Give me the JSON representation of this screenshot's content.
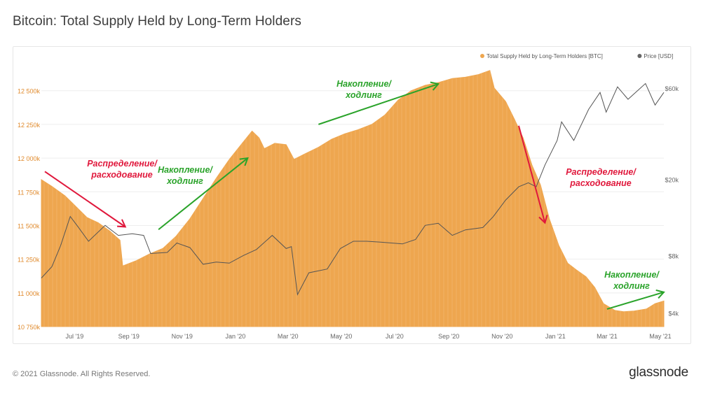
{
  "title": "Bitcoin: Total Supply Held by Long-Term Holders",
  "footer": "© 2021 Glassnode. All Rights Reserved.",
  "brand": "glassnode",
  "watermark": "glassnode",
  "colors": {
    "supply": "#eea64f",
    "supply_text": "#e08a2c",
    "price": "#555555",
    "green": "#2aa32a",
    "red": "#e0183c",
    "grid": "#eeeeee",
    "axis_text": "#666666"
  },
  "chart_data": {
    "type": "area",
    "legend": {
      "position": "top-right",
      "items": [
        {
          "label": "Total Supply Held by Long-Term Holders [BTC]",
          "color": "#eea64f"
        },
        {
          "label": "Price [USD]",
          "color": "#666666"
        }
      ]
    },
    "x_range": [
      "2019-05-24",
      "2021-05-05"
    ],
    "x_ticks": [
      {
        "date": "2019-07-01",
        "label": "Jul '19"
      },
      {
        "date": "2019-09-01",
        "label": "Sep '19"
      },
      {
        "date": "2019-11-01",
        "label": "Nov '19"
      },
      {
        "date": "2020-01-01",
        "label": "Jan '20"
      },
      {
        "date": "2020-03-01",
        "label": "Mar '20"
      },
      {
        "date": "2020-05-01",
        "label": "May '20"
      },
      {
        "date": "2020-07-01",
        "label": "Jul '20"
      },
      {
        "date": "2020-09-01",
        "label": "Sep '20"
      },
      {
        "date": "2020-11-01",
        "label": "Nov '20"
      },
      {
        "date": "2021-01-01",
        "label": "Jan '21"
      },
      {
        "date": "2021-03-01",
        "label": "Mar '21"
      },
      {
        "date": "2021-05-01",
        "label": "May '21"
      }
    ],
    "y_left": {
      "min": 10750,
      "max": 12680,
      "ticks": [
        10750,
        11000,
        11250,
        11500,
        11750,
        12000,
        12250,
        12500
      ],
      "tick_labels": [
        "10 750k",
        "11 000k",
        "11 250k",
        "11 500k",
        "11 750k",
        "12 000k",
        "12 250k",
        "12 500k"
      ]
    },
    "y_right": {
      "scale": "log",
      "min": 3400,
      "max": 78000,
      "ticks": [
        4000,
        8000,
        20000,
        60000
      ],
      "tick_labels": [
        "$4k",
        "$8k",
        "$20k",
        "$60k"
      ]
    },
    "grid": "horizontal",
    "series": [
      {
        "name": "Total Supply Held by Long-Term Holders [BTC]",
        "type": "area",
        "points": [
          [
            "2019-05-24",
            11840
          ],
          [
            "2019-06-05",
            11790
          ],
          [
            "2019-06-20",
            11720
          ],
          [
            "2019-07-01",
            11650
          ],
          [
            "2019-07-15",
            11560
          ],
          [
            "2019-07-28",
            11520
          ],
          [
            "2019-08-10",
            11460
          ],
          [
            "2019-08-22",
            11390
          ],
          [
            "2019-08-25",
            11200
          ],
          [
            "2019-09-10",
            11240
          ],
          [
            "2019-09-25",
            11290
          ],
          [
            "2019-10-10",
            11330
          ],
          [
            "2019-10-25",
            11420
          ],
          [
            "2019-11-10",
            11550
          ],
          [
            "2019-11-25",
            11700
          ],
          [
            "2019-12-10",
            11850
          ],
          [
            "2019-12-25",
            11990
          ],
          [
            "2020-01-10",
            12120
          ],
          [
            "2020-01-20",
            12200
          ],
          [
            "2020-01-28",
            12150
          ],
          [
            "2020-02-03",
            12070
          ],
          [
            "2020-02-15",
            12110
          ],
          [
            "2020-02-28",
            12100
          ],
          [
            "2020-03-08",
            11990
          ],
          [
            "2020-03-20",
            12030
          ],
          [
            "2020-04-05",
            12080
          ],
          [
            "2020-04-20",
            12140
          ],
          [
            "2020-05-05",
            12180
          ],
          [
            "2020-05-20",
            12210
          ],
          [
            "2020-06-05",
            12250
          ],
          [
            "2020-06-20",
            12320
          ],
          [
            "2020-07-05",
            12430
          ],
          [
            "2020-07-20",
            12500
          ],
          [
            "2020-08-05",
            12540
          ],
          [
            "2020-08-20",
            12560
          ],
          [
            "2020-09-05",
            12590
          ],
          [
            "2020-09-20",
            12600
          ],
          [
            "2020-10-05",
            12620
          ],
          [
            "2020-10-18",
            12650
          ],
          [
            "2020-10-23",
            12520
          ],
          [
            "2020-11-05",
            12420
          ],
          [
            "2020-11-15",
            12290
          ],
          [
            "2020-11-25",
            12150
          ],
          [
            "2020-12-05",
            11950
          ],
          [
            "2020-12-15",
            11800
          ],
          [
            "2020-12-25",
            11550
          ],
          [
            "2021-01-05",
            11350
          ],
          [
            "2021-01-15",
            11220
          ],
          [
            "2021-01-25",
            11170
          ],
          [
            "2021-02-05",
            11120
          ],
          [
            "2021-02-15",
            11040
          ],
          [
            "2021-02-25",
            10920
          ],
          [
            "2021-03-10",
            10870
          ],
          [
            "2021-03-20",
            10860
          ],
          [
            "2021-04-01",
            10865
          ],
          [
            "2021-04-15",
            10880
          ],
          [
            "2021-04-25",
            10920
          ],
          [
            "2021-05-05",
            10940
          ]
        ]
      },
      {
        "name": "Price [USD]",
        "type": "line",
        "points": [
          [
            "2019-05-24",
            6100
          ],
          [
            "2019-06-05",
            7000
          ],
          [
            "2019-06-15",
            9000
          ],
          [
            "2019-06-26",
            12800
          ],
          [
            "2019-07-05",
            11300
          ],
          [
            "2019-07-17",
            9500
          ],
          [
            "2019-08-05",
            11500
          ],
          [
            "2019-08-20",
            10200
          ],
          [
            "2019-09-05",
            10400
          ],
          [
            "2019-09-18",
            10200
          ],
          [
            "2019-09-26",
            8200
          ],
          [
            "2019-10-15",
            8300
          ],
          [
            "2019-10-26",
            9300
          ],
          [
            "2019-11-10",
            8800
          ],
          [
            "2019-11-25",
            7200
          ],
          [
            "2019-12-10",
            7400
          ],
          [
            "2019-12-25",
            7300
          ],
          [
            "2020-01-10",
            8000
          ],
          [
            "2020-01-25",
            8600
          ],
          [
            "2020-02-12",
            10200
          ],
          [
            "2020-02-28",
            8700
          ],
          [
            "2020-03-05",
            8900
          ],
          [
            "2020-03-12",
            5000
          ],
          [
            "2020-03-25",
            6500
          ],
          [
            "2020-04-15",
            6800
          ],
          [
            "2020-04-30",
            8700
          ],
          [
            "2020-05-15",
            9500
          ],
          [
            "2020-05-30",
            9500
          ],
          [
            "2020-06-15",
            9400
          ],
          [
            "2020-07-10",
            9200
          ],
          [
            "2020-07-25",
            9700
          ],
          [
            "2020-08-05",
            11500
          ],
          [
            "2020-08-20",
            11800
          ],
          [
            "2020-09-05",
            10200
          ],
          [
            "2020-09-20",
            10900
          ],
          [
            "2020-10-10",
            11200
          ],
          [
            "2020-10-22",
            12800
          ],
          [
            "2020-11-05",
            15600
          ],
          [
            "2020-11-20",
            18300
          ],
          [
            "2020-12-01",
            19200
          ],
          [
            "2020-12-10",
            18300
          ],
          [
            "2020-12-20",
            23800
          ],
          [
            "2021-01-03",
            32000
          ],
          [
            "2021-01-08",
            40000
          ],
          [
            "2021-01-22",
            32000
          ],
          [
            "2021-02-08",
            46500
          ],
          [
            "2021-02-21",
            57000
          ],
          [
            "2021-02-28",
            45000
          ],
          [
            "2021-03-13",
            61000
          ],
          [
            "2021-03-25",
            52500
          ],
          [
            "2021-04-14",
            63500
          ],
          [
            "2021-04-25",
            49000
          ],
          [
            "2021-05-05",
            57000
          ]
        ]
      }
    ],
    "annotations": [
      {
        "lines": [
          "Распределение/",
          "расходование"
        ],
        "color": "red",
        "arrow_from": [
          "2019-05-28",
          11900
        ],
        "arrow_to": [
          "2019-08-28",
          11490
        ]
      },
      {
        "lines": [
          "Накопление/",
          "ходлинг"
        ],
        "color": "green",
        "arrow_from": [
          "2019-10-05",
          11470
        ],
        "arrow_to": [
          "2020-01-15",
          12000
        ]
      },
      {
        "lines": [
          "Накопление/",
          "ходлинг"
        ],
        "color": "green",
        "arrow_from": [
          "2020-04-05",
          12250
        ],
        "arrow_to": [
          "2020-08-20",
          12550
        ]
      },
      {
        "lines": [
          "Распределение/",
          "расходование"
        ],
        "color": "red",
        "arrow_from": [
          "2020-11-20",
          12240
        ],
        "arrow_to": [
          "2020-12-20",
          11520
        ]
      },
      {
        "lines": [
          "Накопление/",
          "ходлинг"
        ],
        "color": "green",
        "arrow_from": [
          "2021-03-01",
          10880
        ],
        "arrow_to": [
          "2021-05-05",
          11005
        ]
      }
    ]
  }
}
